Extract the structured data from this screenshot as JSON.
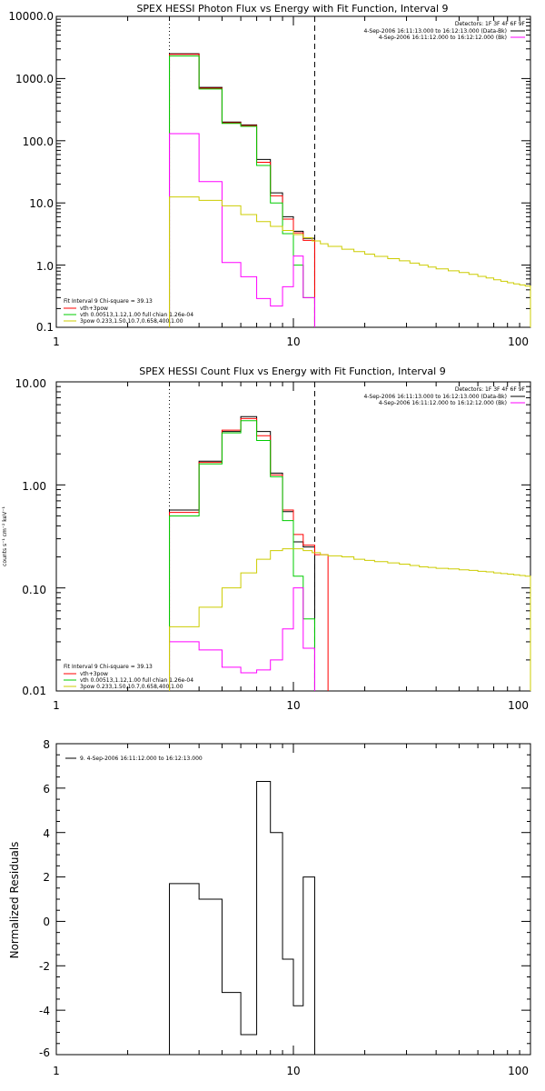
{
  "chart_data": [
    {
      "type": "line",
      "title": "SPEX HESSI Photon Flux vs Energy with Fit Function, Interval 9",
      "ylabel": "",
      "x_scale": "log",
      "y_scale": "log",
      "xlim": [
        1,
        100
      ],
      "ylim": [
        0.1,
        10000
      ],
      "x_ticks": [
        "1",
        "10",
        "100"
      ],
      "y_ticks": [
        "0.1",
        "1.0",
        "10.0",
        "100.0",
        "1000.0",
        "10000.0"
      ],
      "vlines": [
        {
          "x": 3.0,
          "style": "dotted"
        },
        {
          "x": 12.3,
          "style": "dashed"
        }
      ],
      "legend_top": {
        "header": "Detectors: 1F 3F 4F 6F 9F",
        "entries": [
          {
            "label": "4-Sep-2006 16:11:13.000 to 16:12:13.000 (Data-Bk)",
            "color": "#000000"
          },
          {
            "label": "4-Sep-2006 16:11:12.000 to 16:12:12.000 (Bk)",
            "color": "#ff00ff"
          }
        ]
      },
      "legend_bottom": {
        "header": "Fit Interval 9   Chi-square = 39.13",
        "entries": [
          {
            "label": "vth+3pow",
            "color": "#ff0000"
          },
          {
            "label": "vth 0.00513,1.12,1.00  full chian 1.26e-04",
            "color": "#00cc00"
          },
          {
            "label": "3pow 0.233,1.50,10.7,0.658,400,1.00",
            "color": "#cccc00"
          }
        ]
      },
      "series": [
        {
          "color": "#000000",
          "edges": [
            3.0,
            4.0,
            5.0,
            6.0,
            7.0,
            8.0,
            9.0,
            10.0,
            11.0,
            12.3
          ],
          "values": [
            2500,
            720,
            200,
            180,
            50,
            14.5,
            6.0,
            3.5,
            2.7
          ]
        },
        {
          "color": "#ff0000",
          "edges": [
            3.0,
            4.0,
            5.0,
            6.0,
            7.0,
            8.0,
            9.0,
            10.0,
            11.0,
            12.3
          ],
          "values": [
            2450,
            700,
            195,
            175,
            45,
            13,
            5.5,
            3.3,
            2.5
          ]
        },
        {
          "color": "#00cc00",
          "edges": [
            3.0,
            4.0,
            5.0,
            6.0,
            7.0,
            8.0,
            9.0,
            10.0,
            11.0,
            12.3
          ],
          "values": [
            2300,
            680,
            190,
            170,
            40,
            10,
            3.2,
            1.0,
            0.3
          ]
        },
        {
          "color": "#ff00ff",
          "edges": [
            3.0,
            4.0,
            5.0,
            6.0,
            7.0,
            8.0,
            9.0,
            10.0,
            11.0,
            12.3
          ],
          "values": [
            130,
            22,
            1.1,
            0.65,
            0.29,
            0.22,
            0.45,
            1.4,
            0.3
          ]
        },
        {
          "color": "#cccc00",
          "edges": [
            3.0,
            4.0,
            5.0,
            6.0,
            7.0,
            8.0,
            9.0,
            10.0,
            11.0,
            12.0,
            13.0,
            14.0,
            16.0,
            18.0,
            20.0,
            22.0,
            25.0,
            28.0,
            31.0,
            34.0,
            37.0,
            40.0,
            45.0,
            50.0,
            55.0,
            60.0,
            65.0,
            70.0,
            75.0,
            80.0,
            85.0,
            90.0,
            95.0,
            100.0
          ],
          "values": [
            12.5,
            11,
            9,
            6.5,
            5,
            4.2,
            3.6,
            3.1,
            2.75,
            2.45,
            2.2,
            2.0,
            1.8,
            1.65,
            1.5,
            1.38,
            1.27,
            1.17,
            1.08,
            1.0,
            0.93,
            0.87,
            0.81,
            0.76,
            0.71,
            0.66,
            0.62,
            0.58,
            0.55,
            0.52,
            0.5,
            0.48,
            0.46
          ]
        }
      ]
    },
    {
      "type": "line",
      "title": "SPEX HESSI Count Flux vs Energy with Fit Function, Interval 9",
      "ylabel": "counts s⁻¹ cm⁻² keV⁻¹",
      "x_scale": "log",
      "y_scale": "log",
      "xlim": [
        1,
        100
      ],
      "ylim": [
        0.01,
        10
      ],
      "x_ticks": [
        "1",
        "10",
        "100"
      ],
      "y_ticks": [
        "0.01",
        "0.10",
        "1.00",
        "10.00"
      ],
      "vlines": [
        {
          "x": 3.0,
          "style": "dotted"
        },
        {
          "x": 12.3,
          "style": "dashed"
        }
      ],
      "legend_top": {
        "header": "Detectors: 1F 3F 4F 6F 9F",
        "entries": [
          {
            "label": "4-Sep-2006 16:11:13.000 to 16:12:13.000 (Data-Bk)",
            "color": "#000000"
          },
          {
            "label": "4-Sep-2006 16:11:12.000 to 16:12:12.000 (Bk)",
            "color": "#ff00ff"
          }
        ]
      },
      "legend_bottom": {
        "header": "Fit Interval 9   Chi-square = 39.13",
        "entries": [
          {
            "label": "vth+3pow",
            "color": "#ff0000"
          },
          {
            "label": "vth 0.00513,1.12,1.00  full chian 1.26e-04",
            "color": "#00cc00"
          },
          {
            "label": "3pow 0.233,1.50,10.7,0.658,400,1.00",
            "color": "#cccc00"
          }
        ]
      },
      "series": [
        {
          "color": "#000000",
          "edges": [
            3.0,
            4.0,
            5.0,
            6.0,
            7.0,
            8.0,
            9.0,
            10.0,
            11.0,
            12.3
          ],
          "values": [
            0.57,
            1.7,
            3.3,
            4.6,
            3.3,
            1.3,
            0.55,
            0.28,
            0.25
          ]
        },
        {
          "color": "#ff0000",
          "edges": [
            3.0,
            4.0,
            5.0,
            6.0,
            7.0,
            8.0,
            9.0,
            10.0,
            11.0,
            12.3,
            14.0
          ],
          "values": [
            0.54,
            1.65,
            3.4,
            4.4,
            3.0,
            1.25,
            0.57,
            0.33,
            0.26,
            0.21
          ]
        },
        {
          "color": "#00cc00",
          "edges": [
            3.0,
            4.0,
            5.0,
            6.0,
            7.0,
            8.0,
            9.0,
            10.0,
            11.0,
            12.3
          ],
          "values": [
            0.5,
            1.6,
            3.2,
            4.2,
            2.7,
            1.2,
            0.45,
            0.13,
            0.05
          ]
        },
        {
          "color": "#ff00ff",
          "edges": [
            3.0,
            4.0,
            5.0,
            6.0,
            7.0,
            8.0,
            9.0,
            10.0,
            11.0,
            12.3
          ],
          "values": [
            0.03,
            0.025,
            0.017,
            0.015,
            0.016,
            0.02,
            0.04,
            0.1,
            0.026
          ]
        },
        {
          "color": "#cccc00",
          "edges": [
            3.0,
            4.0,
            5.0,
            6.0,
            7.0,
            8.0,
            9.0,
            10.0,
            11.0,
            12.0,
            13.0,
            14.0,
            16.0,
            18.0,
            20.0,
            22.0,
            25.0,
            28.0,
            31.0,
            34.0,
            37.0,
            40.0,
            45.0,
            50.0,
            55.0,
            60.0,
            65.0,
            70.0,
            75.0,
            80.0,
            85.0,
            90.0,
            95.0,
            100.0
          ],
          "values": [
            0.042,
            0.065,
            0.1,
            0.14,
            0.19,
            0.23,
            0.24,
            0.24,
            0.23,
            0.22,
            0.21,
            0.205,
            0.2,
            0.19,
            0.185,
            0.18,
            0.175,
            0.17,
            0.165,
            0.16,
            0.158,
            0.155,
            0.153,
            0.15,
            0.148,
            0.145,
            0.143,
            0.14,
            0.138,
            0.136,
            0.134,
            0.132,
            0.13
          ]
        }
      ]
    },
    {
      "type": "line",
      "title": "",
      "ylabel": "Normalized Residuals",
      "x_scale": "log",
      "y_scale": "linear",
      "xlim": [
        1,
        100
      ],
      "ylim": [
        -6,
        8
      ],
      "x_ticks": [
        "1",
        "10",
        "100"
      ],
      "y_ticks": [
        "-6",
        "-4",
        "-2",
        "0",
        "2",
        "4",
        "6",
        "8"
      ],
      "legend_top": {
        "entries": [
          {
            "label": "9.  4-Sep-2006 16:11:12.000 to 16:12:13.000",
            "color": "#000000"
          }
        ]
      },
      "series": [
        {
          "color": "#000000",
          "edges": [
            3.0,
            4.0,
            5.0,
            6.0,
            7.0,
            8.0,
            9.0,
            10.0,
            11.0,
            12.3
          ],
          "values": [
            1.7,
            1.0,
            -3.2,
            -5.1,
            6.3,
            4.0,
            -1.7,
            -3.8,
            2.0
          ]
        }
      ]
    }
  ]
}
